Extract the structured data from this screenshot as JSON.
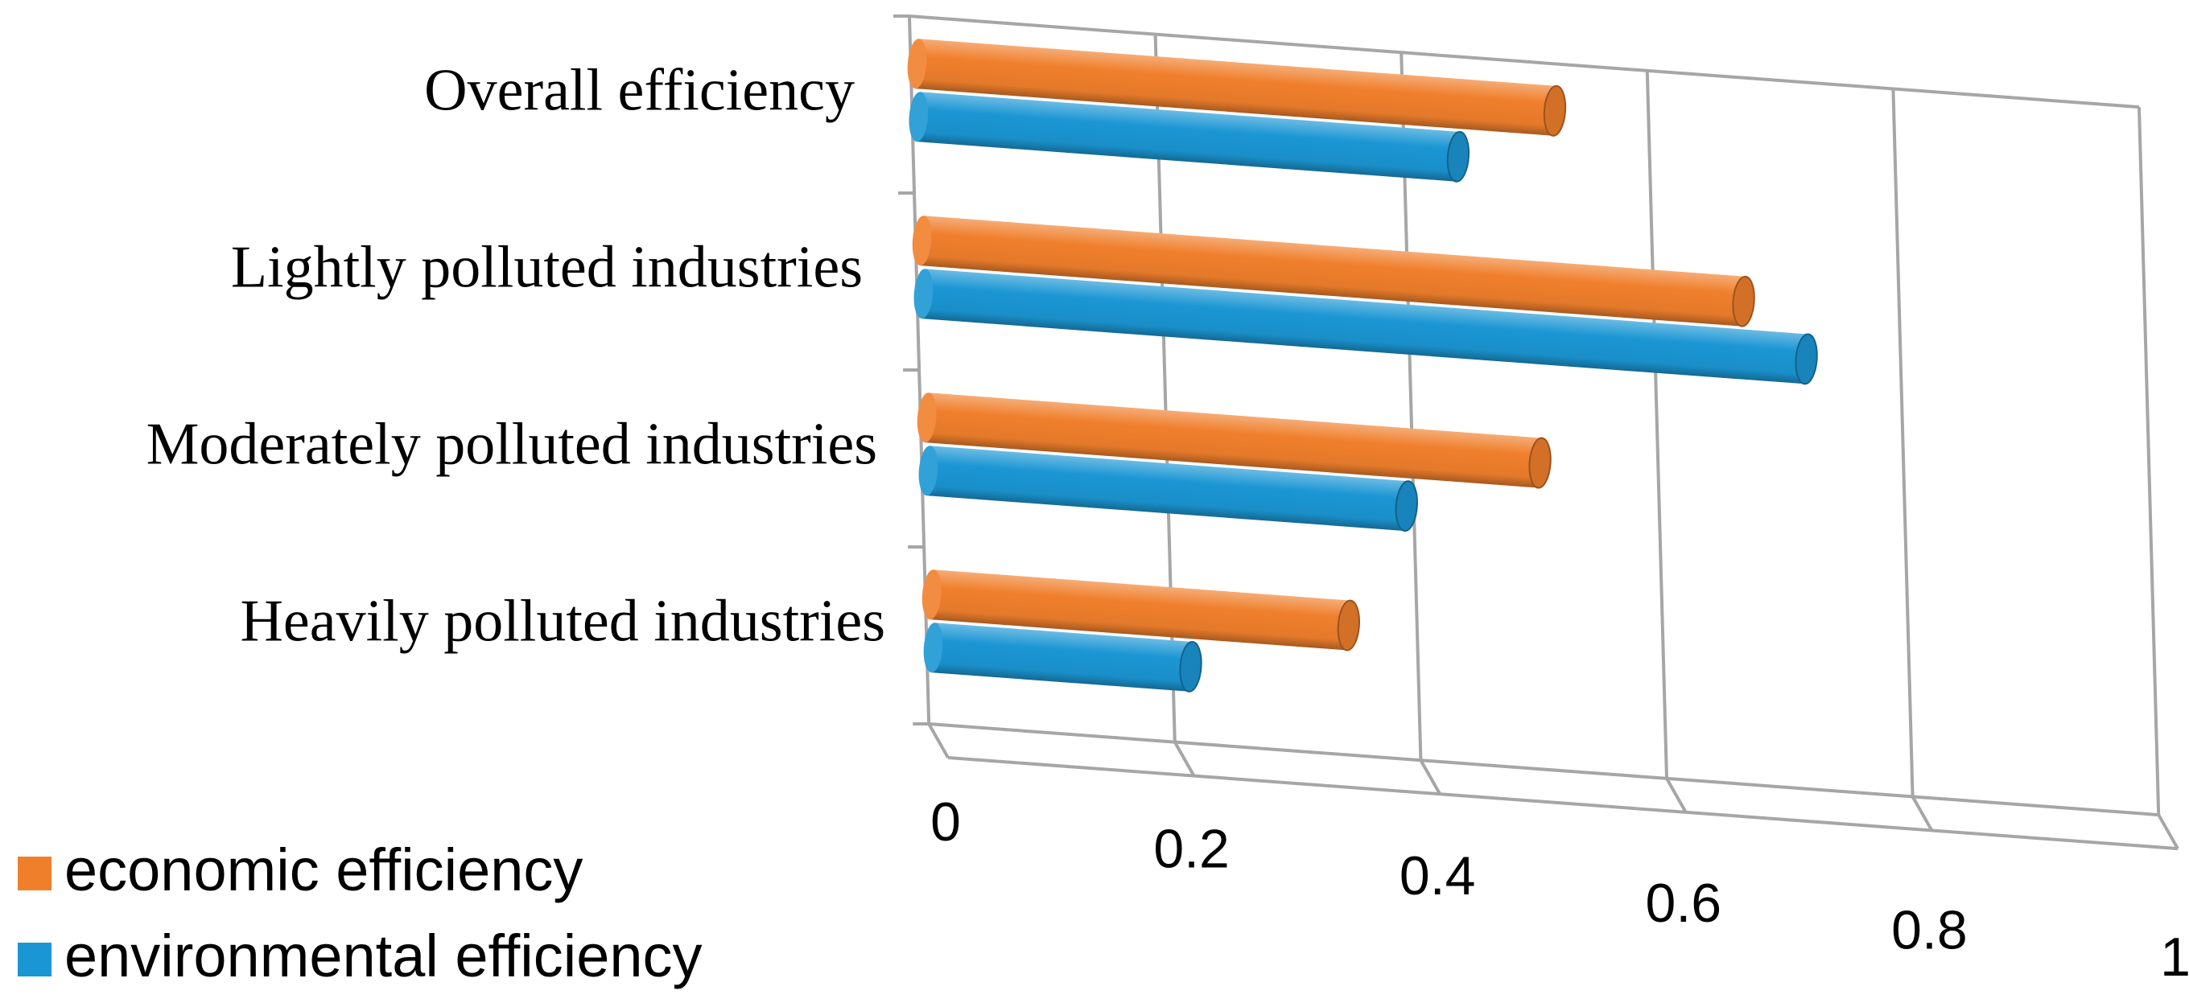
{
  "chart_data": {
    "type": "bar",
    "orientation": "horizontal-3d-cylinder",
    "title": "",
    "xlabel": "",
    "ylabel": "",
    "xlim": [
      0,
      1
    ],
    "ticks": [
      0,
      0.2,
      0.4,
      0.6,
      0.8,
      1
    ],
    "tick_labels": [
      "0",
      "0.2",
      "0.4",
      "0.6",
      "0.8",
      "1"
    ],
    "grid": true,
    "legend_position": "bottom-left",
    "categories": [
      "Overall efficiency",
      "Lightly polluted industries",
      "Moderately polluted industries",
      "Heavily polluted industries"
    ],
    "series": [
      {
        "name": "economic efficiency",
        "color": "#F07F2C",
        "values": [
          0.52,
          0.67,
          0.5,
          0.34
        ]
      },
      {
        "name": "environmental efficiency",
        "color": "#1B96D4",
        "values": [
          0.44,
          0.72,
          0.39,
          0.21
        ]
      }
    ]
  }
}
